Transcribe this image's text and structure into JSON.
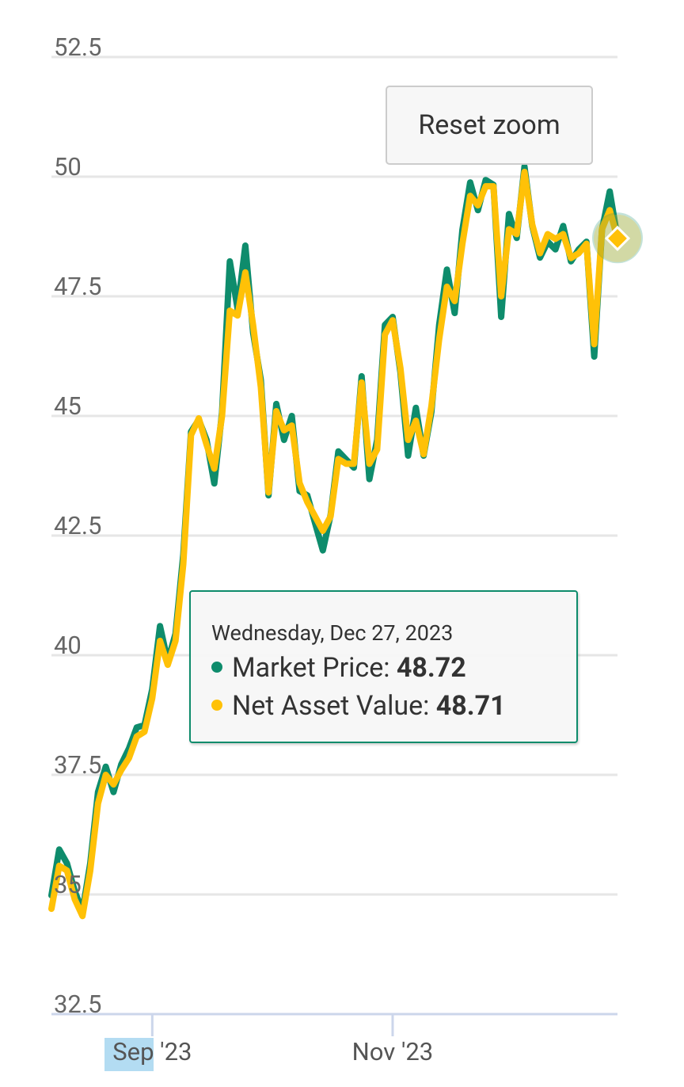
{
  "chart_data": {
    "type": "line",
    "categories": [
      null,
      null,
      null,
      null,
      null,
      null,
      null,
      null,
      null,
      null,
      null,
      null,
      null,
      "Sep '23",
      null,
      null,
      null,
      null,
      null,
      null,
      null,
      null,
      null,
      null,
      null,
      null,
      null,
      null,
      null,
      null,
      null,
      null,
      null,
      null,
      null,
      null,
      null,
      null,
      null,
      null,
      null,
      null,
      null,
      null,
      "Nov '23",
      null,
      null,
      null,
      null,
      null,
      null,
      null,
      null,
      null,
      null,
      null,
      null,
      null,
      null,
      null,
      null,
      null,
      null,
      null,
      null,
      null,
      null,
      null,
      null,
      null,
      null,
      null,
      null,
      null
    ],
    "series": [
      {
        "name": "Market Price",
        "color": "#0e8c6c",
        "values": [
          34.98,
          35.94,
          35.65,
          35.07,
          34.65,
          35.65,
          37.14,
          37.67,
          37.14,
          37.72,
          38.05,
          38.49,
          38.54,
          39.29,
          40.61,
          39.87,
          40.45,
          42.1,
          44.67,
          44.92,
          44.5,
          43.59,
          45.08,
          48.23,
          47.24,
          48.56,
          46.74,
          45.75,
          43.34,
          45.25,
          44.5,
          45.0,
          43.43,
          43.34,
          42.76,
          42.19,
          42.93,
          44.26,
          44.09,
          43.92,
          45.83,
          43.68,
          44.5,
          46.9,
          47.07,
          45.91,
          44.17,
          45.17,
          44.17,
          45.08,
          46.9,
          48.06,
          47.15,
          48.89,
          49.88,
          49.3,
          49.93,
          49.83,
          47.07,
          49.22,
          48.72,
          50.21,
          48.97,
          48.31,
          48.64,
          48.48,
          48.97,
          48.23,
          48.48,
          48.64,
          46.24,
          48.89,
          49.69,
          48.72
        ]
      },
      {
        "name": "Net Asset Value",
        "color": "#ffc107",
        "values": [
          34.7,
          35.6,
          35.5,
          34.9,
          34.55,
          35.5,
          36.9,
          37.5,
          37.3,
          37.6,
          37.85,
          38.3,
          38.4,
          39.1,
          40.3,
          39.8,
          40.3,
          41.9,
          44.6,
          44.95,
          44.4,
          43.9,
          45.0,
          47.2,
          47.1,
          48.0,
          46.9,
          45.6,
          43.4,
          45.1,
          44.7,
          44.8,
          43.6,
          43.2,
          42.9,
          42.6,
          42.9,
          44.1,
          44.0,
          44.0,
          45.7,
          44.0,
          44.3,
          46.7,
          47.0,
          46.0,
          44.5,
          44.9,
          44.2,
          45.2,
          46.6,
          47.7,
          47.4,
          48.6,
          49.6,
          49.4,
          49.8,
          49.8,
          47.5,
          48.9,
          48.8,
          50.1,
          49.0,
          48.4,
          48.8,
          48.7,
          48.8,
          48.3,
          48.4,
          48.6,
          46.5,
          48.9,
          49.3,
          48.71
        ]
      }
    ],
    "ylim": [
      32.5,
      52.5
    ],
    "yticks": [
      32.5,
      35,
      37.5,
      40,
      42.5,
      45,
      47.5,
      50,
      52.5
    ],
    "grid": true,
    "button": "Reset zoom",
    "tooltip": {
      "title": "Wednesday, Dec 27, 2023"
    }
  }
}
